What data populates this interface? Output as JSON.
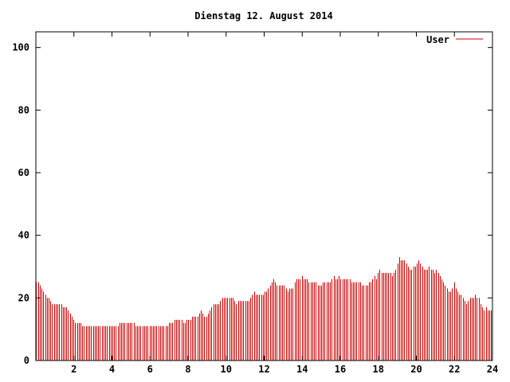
{
  "chart_data": {
    "type": "bar",
    "title": "Dienstag 12. August 2014",
    "xlabel": "",
    "ylabel": "",
    "xlim": [
      0,
      24
    ],
    "ylim": [
      0,
      105
    ],
    "xticks": [
      2,
      4,
      6,
      8,
      10,
      12,
      14,
      16,
      18,
      20,
      22,
      24
    ],
    "xtick_labels": [
      "2",
      "4",
      "6",
      "8",
      "10",
      "12",
      "14",
      "16",
      "18",
      "20",
      "22",
      "24"
    ],
    "yticks": [
      0,
      20,
      40,
      60,
      80,
      100
    ],
    "ytick_labels": [
      "0",
      "20",
      "40",
      "60",
      "80",
      "100"
    ],
    "grid": false,
    "legend_position": "top-right",
    "series": [
      {
        "name": "User",
        "color": "#cc0000",
        "x_step_hours": 0.0833,
        "values": [
          25,
          25,
          24,
          23,
          22,
          21,
          20,
          20,
          19,
          18,
          18,
          18,
          18,
          18,
          18,
          17,
          17,
          17,
          16,
          15,
          14,
          13,
          12,
          12,
          12,
          12,
          11,
          11,
          11,
          11,
          11,
          11,
          11,
          11,
          11,
          11,
          11,
          11,
          11,
          11,
          11,
          11,
          11,
          11,
          11,
          11,
          11,
          12,
          12,
          12,
          12,
          12,
          12,
          12,
          12,
          12,
          11,
          11,
          11,
          11,
          11,
          11,
          11,
          11,
          11,
          11,
          11,
          11,
          11,
          11,
          11,
          11,
          11,
          11,
          11,
          12,
          12,
          12,
          13,
          13,
          13,
          13,
          13,
          12,
          12,
          13,
          13,
          13,
          14,
          14,
          14,
          14,
          15,
          16,
          15,
          14,
          14,
          15,
          16,
          17,
          18,
          18,
          18,
          18,
          19,
          20,
          20,
          20,
          20,
          20,
          20,
          20,
          19,
          18,
          19,
          19,
          19,
          19,
          19,
          19,
          19,
          20,
          21,
          22,
          21,
          21,
          21,
          21,
          21,
          22,
          22,
          23,
          24,
          25,
          26,
          25,
          24,
          24,
          24,
          24,
          24,
          23,
          22,
          23,
          23,
          23,
          25,
          26,
          26,
          26,
          27,
          26,
          26,
          26,
          25,
          25,
          25,
          25,
          25,
          24,
          24,
          24,
          25,
          25,
          25,
          25,
          25,
          26,
          27,
          26,
          26,
          27,
          26,
          26,
          26,
          26,
          26,
          26,
          25,
          25,
          25,
          25,
          25,
          25,
          24,
          24,
          24,
          24,
          25,
          25,
          26,
          27,
          26,
          28,
          29,
          28,
          28,
          28,
          28,
          28,
          28,
          27,
          28,
          29,
          31,
          33,
          32,
          32,
          32,
          31,
          30,
          29,
          29,
          30,
          30,
          31,
          32,
          31,
          30,
          29,
          29,
          29,
          30,
          29,
          29,
          28,
          29,
          28,
          27,
          26,
          25,
          24,
          23,
          22,
          22,
          23,
          25,
          23,
          22,
          21,
          21,
          20,
          19,
          18,
          19,
          20,
          20,
          20,
          21,
          20,
          20,
          18,
          17,
          16,
          17,
          16,
          16,
          16
        ]
      }
    ]
  }
}
